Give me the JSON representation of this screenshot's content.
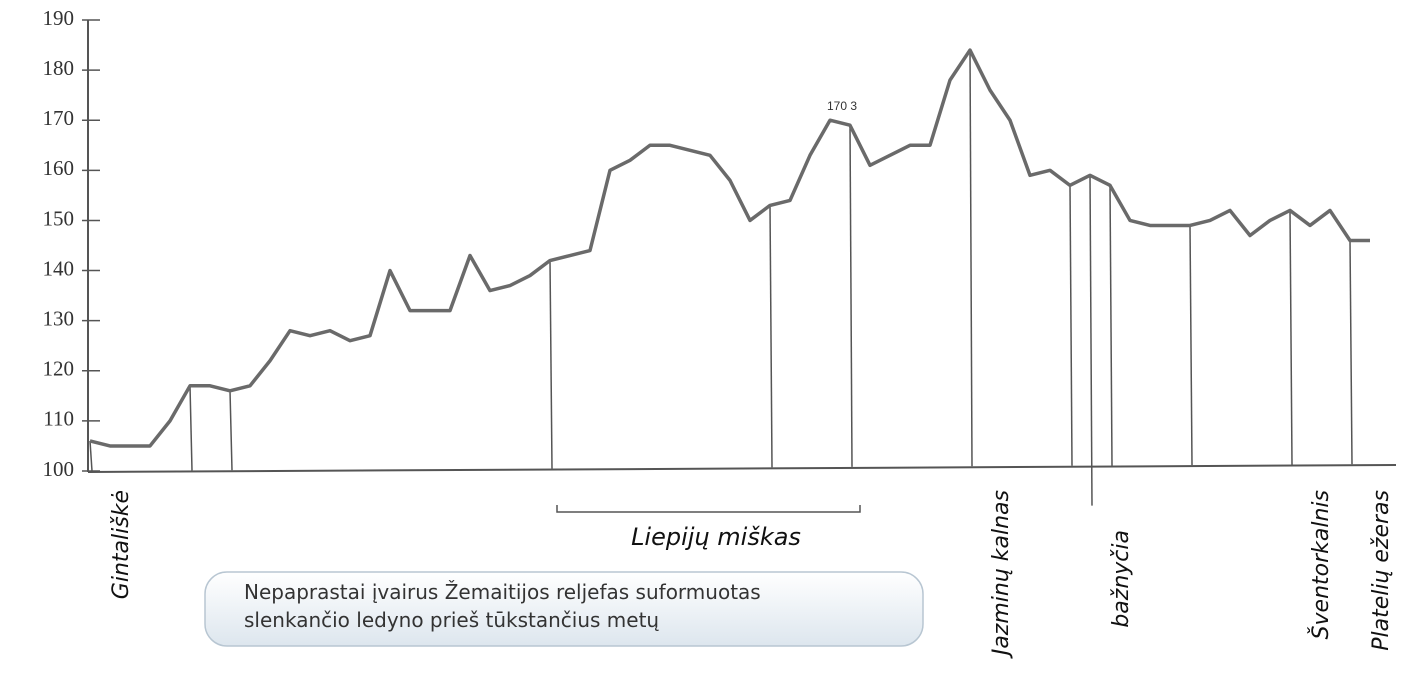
{
  "chart_data": {
    "type": "line",
    "categories": [
      "Gintališkė",
      null,
      null,
      null,
      null,
      null,
      null,
      null,
      null,
      null,
      null,
      null,
      null,
      null,
      null,
      null,
      null,
      null,
      null,
      null,
      null,
      null,
      null,
      null,
      null,
      null,
      null,
      null,
      null,
      null,
      null,
      null,
      null,
      null,
      null,
      null,
      null,
      null,
      null,
      null,
      null,
      null,
      null,
      null,
      "Jazminų kalnas",
      null,
      null,
      null,
      null,
      null,
      "bažnyčia",
      null,
      null,
      null,
      null,
      null,
      null,
      null,
      null,
      null,
      "Šventorkalnis",
      null,
      null,
      "Platelių ežeras",
      null
    ],
    "values": [
      106,
      105,
      105,
      105,
      110,
      117,
      117,
      116,
      117,
      122,
      128,
      127,
      128,
      126,
      127,
      140,
      132,
      132,
      132,
      143,
      136,
      137,
      139,
      142,
      143,
      144,
      160,
      162,
      165,
      165,
      164,
      163,
      158,
      150,
      153,
      154,
      163,
      170,
      169,
      161,
      163,
      165,
      165,
      178,
      184,
      176,
      170,
      159,
      160,
      157,
      159,
      157,
      150,
      149,
      149,
      149,
      150,
      152,
      147,
      150,
      152,
      149,
      152,
      146,
      146
    ],
    "color": "#6a6a6a",
    "ylim": [
      100,
      190
    ],
    "yticks": [
      100,
      110,
      120,
      130,
      140,
      150,
      160,
      170,
      180,
      190
    ],
    "annotations": [
      "Liepijų miškas",
      "170 3"
    ]
  },
  "caption": {
    "lines": [
      "Nepaprastai įvairus Žemaitijos reljefas suformuotas",
      "slenkančio ledyno prieš tūkstančius metų"
    ]
  }
}
